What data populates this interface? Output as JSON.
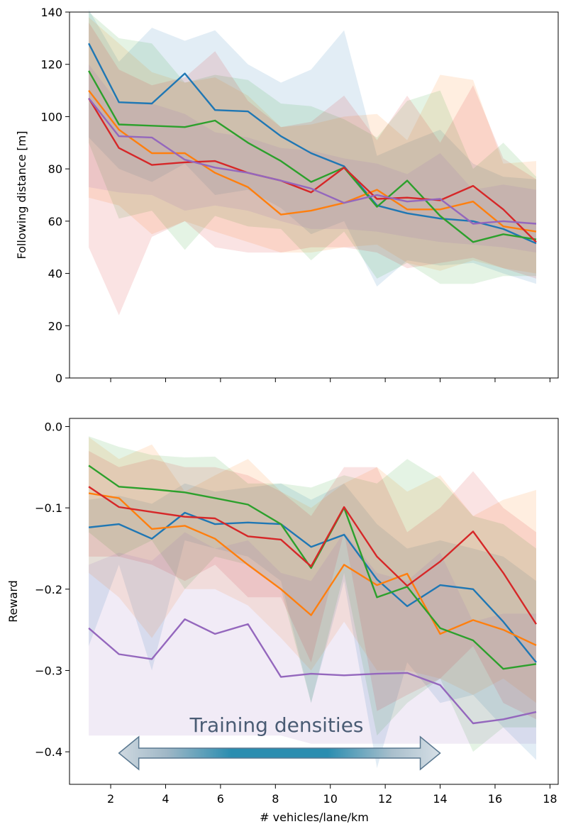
{
  "chart_data": [
    {
      "type": "line",
      "title": "",
      "xlabel": "",
      "ylabel": "Following distance [m]",
      "xlim": [
        0.5,
        18.3
      ],
      "ylim": [
        0,
        140
      ],
      "yticks": [
        0,
        20,
        40,
        60,
        80,
        100,
        120,
        140
      ],
      "ytick_labels": [
        "0",
        "20",
        "40",
        "60",
        "80",
        "100",
        "120",
        "140"
      ],
      "xticks": [
        2,
        4,
        6,
        8,
        10,
        12,
        14,
        16,
        18
      ],
      "grid": false,
      "x": [
        1.2,
        2.3,
        3.5,
        4.7,
        5.8,
        7.0,
        8.2,
        9.3,
        10.5,
        11.7,
        12.8,
        14.0,
        15.2,
        16.3,
        17.5
      ],
      "series": [
        {
          "color": "#1f77b4",
          "values": [
            128,
            105.5,
            105,
            116.5,
            102.5,
            102,
            92.5,
            86,
            81,
            66,
            63,
            61,
            60,
            57,
            51.5
          ],
          "upper": [
            141,
            121,
            134,
            129,
            133,
            120,
            113,
            118,
            133,
            85,
            90,
            95,
            82,
            77,
            76
          ],
          "lower": [
            92,
            80,
            75,
            82,
            70,
            72,
            65,
            55,
            60,
            35,
            45,
            43,
            44,
            40,
            36
          ]
        },
        {
          "color": "#ff7f0e",
          "values": [
            110,
            95,
            86,
            86,
            78.5,
            73,
            62.5,
            64,
            67,
            72,
            64.5,
            64.5,
            67.5,
            58,
            56
          ],
          "upper": [
            138,
            128,
            117,
            113,
            115,
            108,
            96,
            97,
            100,
            101,
            91,
            116,
            114,
            82,
            83
          ],
          "lower": [
            69,
            66,
            55,
            60,
            56,
            52,
            48,
            48,
            50,
            51,
            44,
            41,
            45,
            42,
            40
          ]
        },
        {
          "color": "#2ca02c",
          "values": [
            117.5,
            97,
            96.5,
            96,
            98.5,
            90,
            83,
            75,
            80.5,
            65.5,
            75.5,
            62,
            52,
            55,
            53
          ],
          "upper": [
            140,
            130,
            128,
            113,
            116,
            114,
            105,
            104,
            99,
            92,
            106,
            110,
            80,
            90,
            77
          ],
          "lower": [
            90,
            61,
            64,
            49,
            62,
            58,
            57,
            45,
            56,
            38,
            44,
            36,
            36,
            39,
            39
          ]
        },
        {
          "color": "#d62728",
          "values": [
            107,
            88,
            81.5,
            82.5,
            83,
            78.5,
            75.5,
            71,
            80.5,
            68.5,
            69,
            68,
            73.5,
            64.5,
            52
          ],
          "upper": [
            136,
            118,
            112,
            115,
            125,
            106,
            96,
            98,
            108,
            91,
            108,
            90,
            112,
            84,
            76
          ],
          "lower": [
            50,
            24,
            54,
            60,
            50,
            48,
            48,
            50,
            50,
            48,
            42,
            44,
            46,
            42,
            38
          ]
        },
        {
          "color": "#9467bd",
          "values": [
            107,
            92.5,
            92,
            83.5,
            80.5,
            78.5,
            75.5,
            72.5,
            67,
            70,
            67.5,
            68.5,
            59,
            60,
            59
          ],
          "upper": [
            120,
            105,
            105,
            101,
            94,
            92,
            88,
            87,
            84,
            82,
            78,
            86,
            72,
            74,
            72
          ],
          "lower": [
            73,
            71,
            70,
            64,
            66,
            64,
            60,
            57,
            57,
            56,
            54,
            52,
            51,
            50,
            48
          ]
        }
      ]
    },
    {
      "type": "line",
      "title": "",
      "xlabel": "# vehicles/lane/km",
      "ylabel": "Reward",
      "xlim": [
        0.5,
        18.3
      ],
      "ylim": [
        -0.44,
        0.01
      ],
      "yticks": [
        0.0,
        -0.1,
        -0.2,
        -0.3,
        -0.4
      ],
      "ytick_labels": [
        "0.0",
        "−0.1",
        "−0.2",
        "−0.3",
        "−0.4"
      ],
      "xticks": [
        2,
        4,
        6,
        8,
        10,
        12,
        14,
        16,
        18
      ],
      "xtick_labels": [
        "2",
        "4",
        "6",
        "8",
        "10",
        "12",
        "14",
        "16",
        "18"
      ],
      "grid": false,
      "annotation": "Training densities",
      "annotation_range": [
        2.3,
        14.0
      ],
      "x": [
        1.2,
        2.3,
        3.5,
        4.7,
        5.8,
        7.0,
        8.2,
        9.3,
        10.5,
        11.7,
        12.8,
        14.0,
        15.2,
        16.3,
        17.5
      ],
      "series": [
        {
          "color": "#1f77b4",
          "values": [
            -0.124,
            -0.12,
            -0.138,
            -0.106,
            -0.12,
            -0.118,
            -0.12,
            -0.148,
            -0.133,
            -0.188,
            -0.221,
            -0.195,
            -0.2,
            -0.24,
            -0.29
          ],
          "upper": [
            -0.09,
            -0.085,
            -0.095,
            -0.07,
            -0.08,
            -0.075,
            -0.07,
            -0.09,
            -0.07,
            -0.12,
            -0.15,
            -0.14,
            -0.15,
            -0.16,
            -0.19
          ],
          "lower": [
            -0.27,
            -0.17,
            -0.3,
            -0.14,
            -0.15,
            -0.16,
            -0.19,
            -0.34,
            -0.19,
            -0.42,
            -0.29,
            -0.34,
            -0.33,
            -0.37,
            -0.41
          ]
        },
        {
          "color": "#ff7f0e",
          "values": [
            -0.082,
            -0.088,
            -0.126,
            -0.122,
            -0.138,
            -0.17,
            -0.2,
            -0.232,
            -0.17,
            -0.195,
            -0.181,
            -0.255,
            -0.238,
            -0.25,
            -0.269
          ],
          "upper": [
            -0.013,
            -0.04,
            -0.022,
            -0.08,
            -0.06,
            -0.04,
            -0.08,
            -0.1,
            -0.07,
            -0.05,
            -0.08,
            -0.06,
            -0.11,
            -0.09,
            -0.078
          ],
          "lower": [
            -0.18,
            -0.21,
            -0.26,
            -0.2,
            -0.2,
            -0.22,
            -0.26,
            -0.3,
            -0.24,
            -0.3,
            -0.3,
            -0.31,
            -0.33,
            -0.31,
            -0.34
          ]
        },
        {
          "color": "#2ca02c",
          "values": [
            -0.048,
            -0.074,
            -0.077,
            -0.081,
            -0.088,
            -0.096,
            -0.12,
            -0.174,
            -0.1,
            -0.21,
            -0.197,
            -0.248,
            -0.263,
            -0.298,
            -0.292
          ],
          "upper": [
            -0.012,
            -0.025,
            -0.035,
            -0.038,
            -0.037,
            -0.07,
            -0.07,
            -0.075,
            -0.06,
            -0.07,
            -0.04,
            -0.065,
            -0.11,
            -0.12,
            -0.15
          ],
          "lower": [
            -0.13,
            -0.16,
            -0.14,
            -0.2,
            -0.16,
            -0.17,
            -0.2,
            -0.34,
            -0.18,
            -0.38,
            -0.34,
            -0.31,
            -0.4,
            -0.37,
            -0.37
          ]
        },
        {
          "color": "#d62728",
          "values": [
            -0.074,
            -0.099,
            -0.105,
            -0.111,
            -0.113,
            -0.135,
            -0.139,
            -0.172,
            -0.099,
            -0.16,
            -0.196,
            -0.166,
            -0.129,
            -0.18,
            -0.243
          ],
          "upper": [
            -0.03,
            -0.05,
            -0.04,
            -0.05,
            -0.05,
            -0.06,
            -0.08,
            -0.11,
            -0.05,
            -0.05,
            -0.13,
            -0.1,
            -0.055,
            -0.1,
            -0.13
          ],
          "lower": [
            -0.16,
            -0.16,
            -0.17,
            -0.19,
            -0.17,
            -0.21,
            -0.21,
            -0.29,
            -0.13,
            -0.35,
            -0.33,
            -0.31,
            -0.27,
            -0.34,
            -0.36
          ]
        },
        {
          "color": "#9467bd",
          "values": [
            -0.248,
            -0.28,
            -0.286,
            -0.237,
            -0.255,
            -0.243,
            -0.308,
            -0.304,
            -0.306,
            -0.304,
            -0.303,
            -0.318,
            -0.365,
            -0.36,
            -0.351
          ],
          "upper": [
            -0.17,
            -0.155,
            -0.165,
            -0.13,
            -0.15,
            -0.14,
            -0.18,
            -0.19,
            -0.13,
            -0.18,
            -0.19,
            -0.155,
            -0.24,
            -0.23,
            -0.23
          ],
          "lower": [
            -0.38,
            -0.38,
            -0.38,
            -0.38,
            -0.38,
            -0.38,
            -0.38,
            -0.39,
            -0.39,
            -0.39,
            -0.39,
            -0.39,
            -0.39,
            -0.39,
            -0.39
          ]
        }
      ]
    }
  ]
}
